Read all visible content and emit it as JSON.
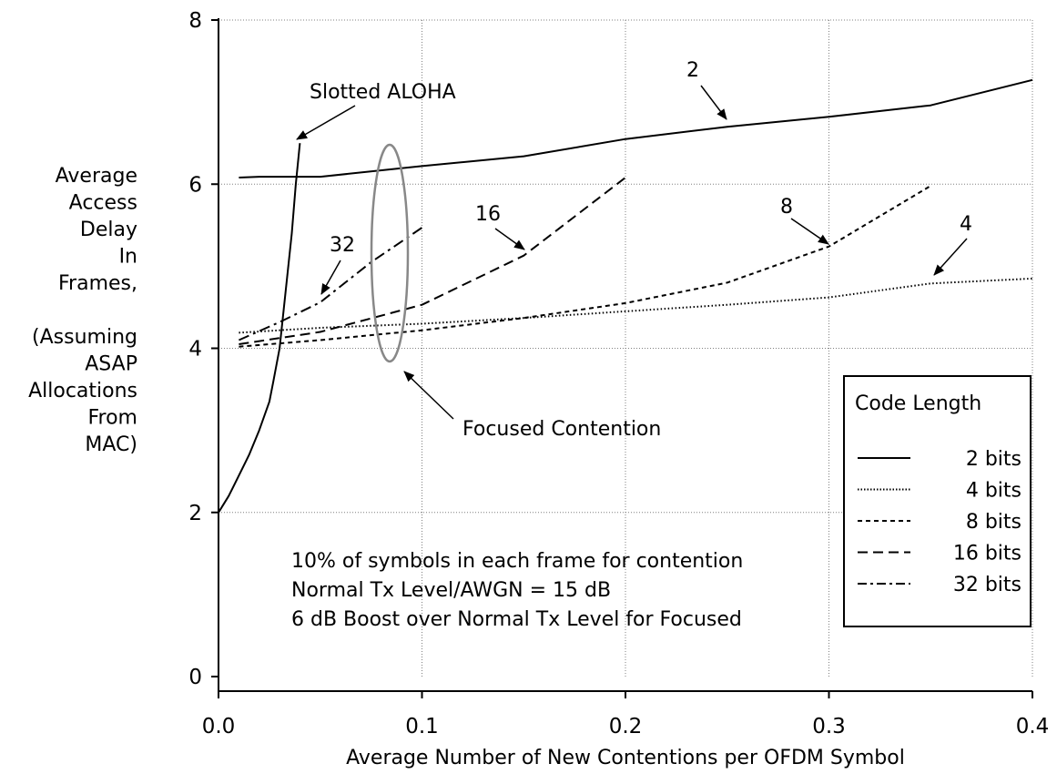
{
  "chart_data": {
    "type": "line",
    "title": "",
    "xlabel": "Average Number of New Contentions per OFDM Symbol",
    "ylabel_lines": [
      "Average",
      "Access",
      "Delay",
      "In",
      "Frames,",
      "",
      "(Assuming",
      "ASAP",
      "Allocations",
      "From",
      "MAC)"
    ],
    "xlim": [
      0,
      0.4
    ],
    "ylim": [
      0,
      8
    ],
    "xticks": [
      0.0,
      0.1,
      0.2,
      0.3,
      0.4
    ],
    "xtick_labels": [
      "0.0",
      "0.1",
      "0.2",
      "0.3",
      "0.4"
    ],
    "yticks": [
      0,
      2,
      4,
      6,
      8
    ],
    "ytick_labels": [
      "0",
      "2",
      "4",
      "6",
      "8"
    ],
    "grid": true,
    "legend": {
      "title": "Code Length",
      "position": "right",
      "entries": [
        "2 bits",
        "4 bits",
        "8 bits",
        "16 bits",
        "32 bits"
      ]
    },
    "series": [
      {
        "name": "2 bits",
        "style": "solid",
        "x": [
          0.01,
          0.02,
          0.05,
          0.1,
          0.15,
          0.2,
          0.25,
          0.3,
          0.35,
          0.4
        ],
        "y": [
          6.08,
          6.09,
          6.09,
          6.22,
          6.34,
          6.55,
          6.7,
          6.82,
          6.96,
          7.27
        ]
      },
      {
        "name": "4 bits",
        "style": "dotted",
        "x": [
          0.01,
          0.05,
          0.1,
          0.15,
          0.2,
          0.25,
          0.3,
          0.35,
          0.4
        ],
        "y": [
          4.19,
          4.25,
          4.3,
          4.37,
          4.45,
          4.53,
          4.62,
          4.79,
          4.85
        ]
      },
      {
        "name": "8 bits",
        "style": "short-dash",
        "x": [
          0.01,
          0.05,
          0.1,
          0.15,
          0.2,
          0.25,
          0.3,
          0.35
        ],
        "y": [
          4.02,
          4.1,
          4.22,
          4.37,
          4.55,
          4.8,
          5.24,
          5.98
        ]
      },
      {
        "name": "16 bits",
        "style": "long-dash",
        "x": [
          0.01,
          0.05,
          0.1,
          0.15,
          0.2
        ],
        "y": [
          4.05,
          4.2,
          4.53,
          5.13,
          6.08
        ]
      },
      {
        "name": "32 bits",
        "style": "dash-dot",
        "x": [
          0.01,
          0.03,
          0.05,
          0.075,
          0.1
        ],
        "y": [
          4.1,
          4.32,
          4.56,
          5.05,
          5.47
        ]
      },
      {
        "name": "Slotted ALOHA",
        "style": "solid",
        "x": [
          0.0,
          0.005,
          0.01,
          0.015,
          0.02,
          0.025,
          0.027,
          0.03,
          0.033,
          0.036,
          0.038,
          0.04
        ],
        "y": [
          2.0,
          2.2,
          2.45,
          2.7,
          3.0,
          3.35,
          3.6,
          4.0,
          4.7,
          5.4,
          6.0,
          6.5
        ]
      }
    ],
    "annotations": {
      "slotted_aloha": "Slotted ALOHA",
      "focused_contention": "Focused Contention",
      "label_2": "2",
      "label_4": "4",
      "label_8": "8",
      "label_16": "16",
      "label_32": "32",
      "note_lines": [
        "10% of symbols in each frame for contention",
        "Normal Tx Level/AWGN = 15 dB",
        "6 dB Boost over Normal Tx Level for Focused"
      ]
    },
    "colors": {
      "lines": "#000000",
      "grid": "#808080",
      "ellipse": "#888888"
    }
  }
}
